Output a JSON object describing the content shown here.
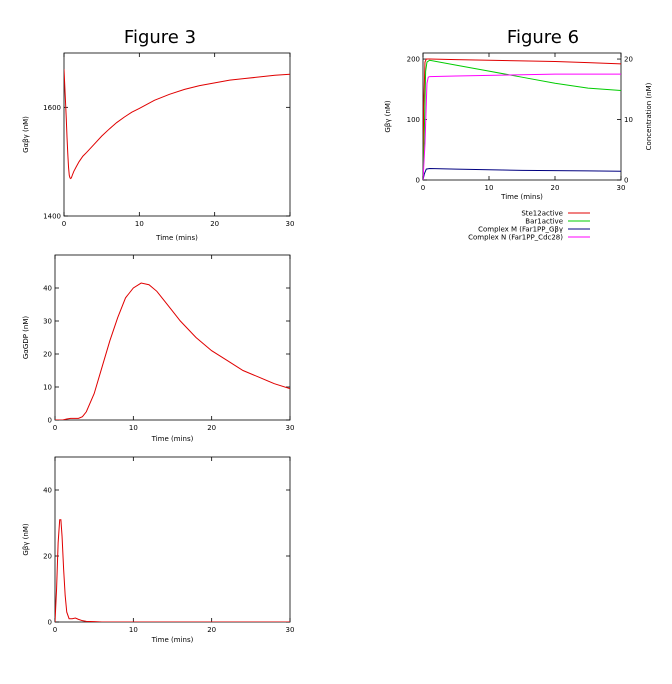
{
  "titles": {
    "left": "Figure 3",
    "right": "Figure 6"
  },
  "chart_data": [
    {
      "type": "line",
      "xlabel": "Time (mins)",
      "ylabel": "Gαβγ (nM)",
      "xlim": [
        0,
        30
      ],
      "ylim": [
        1400,
        1700
      ],
      "xticks": [
        0,
        10,
        20,
        30
      ],
      "yticks": [
        1400,
        1600
      ],
      "grid": false,
      "series": [
        {
          "color": "#e00000",
          "x": [
            0,
            0.1,
            0.2,
            0.3,
            0.4,
            0.5,
            0.6,
            0.7,
            0.8,
            0.9,
            1.0,
            1.1,
            1.3,
            1.6,
            2,
            2.5,
            3,
            4,
            5,
            6,
            7,
            8,
            9,
            10,
            12,
            14,
            16,
            18,
            20,
            22,
            24,
            26,
            28,
            30
          ],
          "y": [
            1670,
            1640,
            1610,
            1580,
            1545,
            1515,
            1490,
            1475,
            1470,
            1469,
            1471,
            1475,
            1482,
            1490,
            1500,
            1510,
            1517,
            1532,
            1547,
            1560,
            1572,
            1582,
            1591,
            1598,
            1613,
            1624,
            1633,
            1640,
            1645,
            1650,
            1653,
            1656,
            1659,
            1661
          ]
        }
      ]
    },
    {
      "type": "line",
      "xlabel": "Time (mins)",
      "ylabel": "GαGDP (nM)",
      "xlim": [
        0,
        30
      ],
      "ylim": [
        0,
        50
      ],
      "xticks": [
        0,
        10,
        20,
        30
      ],
      "yticks": [
        0,
        10,
        20,
        30,
        40
      ],
      "grid": false,
      "series": [
        {
          "color": "#e00000",
          "x": [
            0,
            1,
            1.5,
            2,
            3,
            3.5,
            4,
            5,
            6,
            7,
            8,
            9,
            10,
            11,
            12,
            13,
            14,
            15,
            16,
            18,
            20,
            22,
            24,
            26,
            28,
            30
          ],
          "y": [
            0,
            0,
            0.3,
            0.5,
            0.5,
            1,
            2.5,
            8,
            16,
            24,
            31,
            37,
            40,
            41.5,
            41,
            39,
            36,
            33,
            30,
            25,
            21,
            18,
            15,
            13,
            11,
            9.5
          ]
        }
      ]
    },
    {
      "type": "line",
      "xlabel": "Time (mins)",
      "ylabel": "Gβγ (nM)",
      "xlim": [
        0,
        30
      ],
      "ylim": [
        0,
        50
      ],
      "xticks": [
        0,
        10,
        20,
        30
      ],
      "yticks": [
        0,
        20,
        40
      ],
      "grid": false,
      "series": [
        {
          "color": "#e00000",
          "x": [
            0,
            0.2,
            0.4,
            0.6,
            0.75,
            0.9,
            1.1,
            1.3,
            1.5,
            1.8,
            2.2,
            2.6,
            3,
            3.5,
            4,
            5,
            6,
            10,
            20,
            30
          ],
          "y": [
            0,
            10,
            24,
            31,
            31,
            26,
            16,
            8,
            3,
            1,
            1,
            1.2,
            0.8,
            0.4,
            0.2,
            0.1,
            0,
            0,
            0,
            0
          ]
        }
      ]
    },
    {
      "type": "line",
      "xlabel": "Time (mins)",
      "ylabel": "Gβγ (nM)",
      "y2label": "Concentration (nM)",
      "xlim": [
        0,
        30
      ],
      "ylim": [
        0,
        210
      ],
      "y2lim": [
        0,
        21
      ],
      "xticks": [
        0,
        10,
        20,
        30
      ],
      "yticks": [
        0,
        100,
        200
      ],
      "y2ticks": [
        0,
        10,
        20
      ],
      "grid": false,
      "legend_position": "below",
      "series": [
        {
          "name": "Ste12active",
          "color": "#e00000",
          "axis": "y1",
          "x": [
            0,
            0.1,
            0.3,
            0.5,
            1,
            5,
            10,
            15,
            20,
            25,
            30
          ],
          "y": [
            0,
            120,
            195,
            200,
            200,
            199,
            198,
            197,
            196,
            194,
            192
          ]
        },
        {
          "name": "Bar1active",
          "color": "#00cc00",
          "axis": "y1",
          "x": [
            0,
            0.2,
            0.4,
            0.6,
            1,
            5,
            10,
            15,
            20,
            25,
            30
          ],
          "y": [
            0,
            80,
            180,
            195,
            198,
            190,
            180,
            170,
            160,
            152,
            148
          ]
        },
        {
          "name": "Complex M (Far1PP_Gβγ",
          "color": "#000080",
          "axis": "y2",
          "x": [
            0,
            0.2,
            0.5,
            1,
            5,
            10,
            15,
            20,
            25,
            30
          ],
          "y": [
            0,
            1,
            1.8,
            1.9,
            1.8,
            1.7,
            1.6,
            1.55,
            1.5,
            1.45
          ]
        },
        {
          "name": "Complex N (Far1PP_Cdc28)",
          "color": "#ff00ff",
          "axis": "y2",
          "x": [
            0,
            0.3,
            0.6,
            0.8,
            1,
            5,
            10,
            15,
            20,
            25,
            30
          ],
          "y": [
            0,
            6,
            16,
            17,
            17.1,
            17.2,
            17.3,
            17.4,
            17.5,
            17.5,
            17.5
          ]
        }
      ]
    }
  ]
}
